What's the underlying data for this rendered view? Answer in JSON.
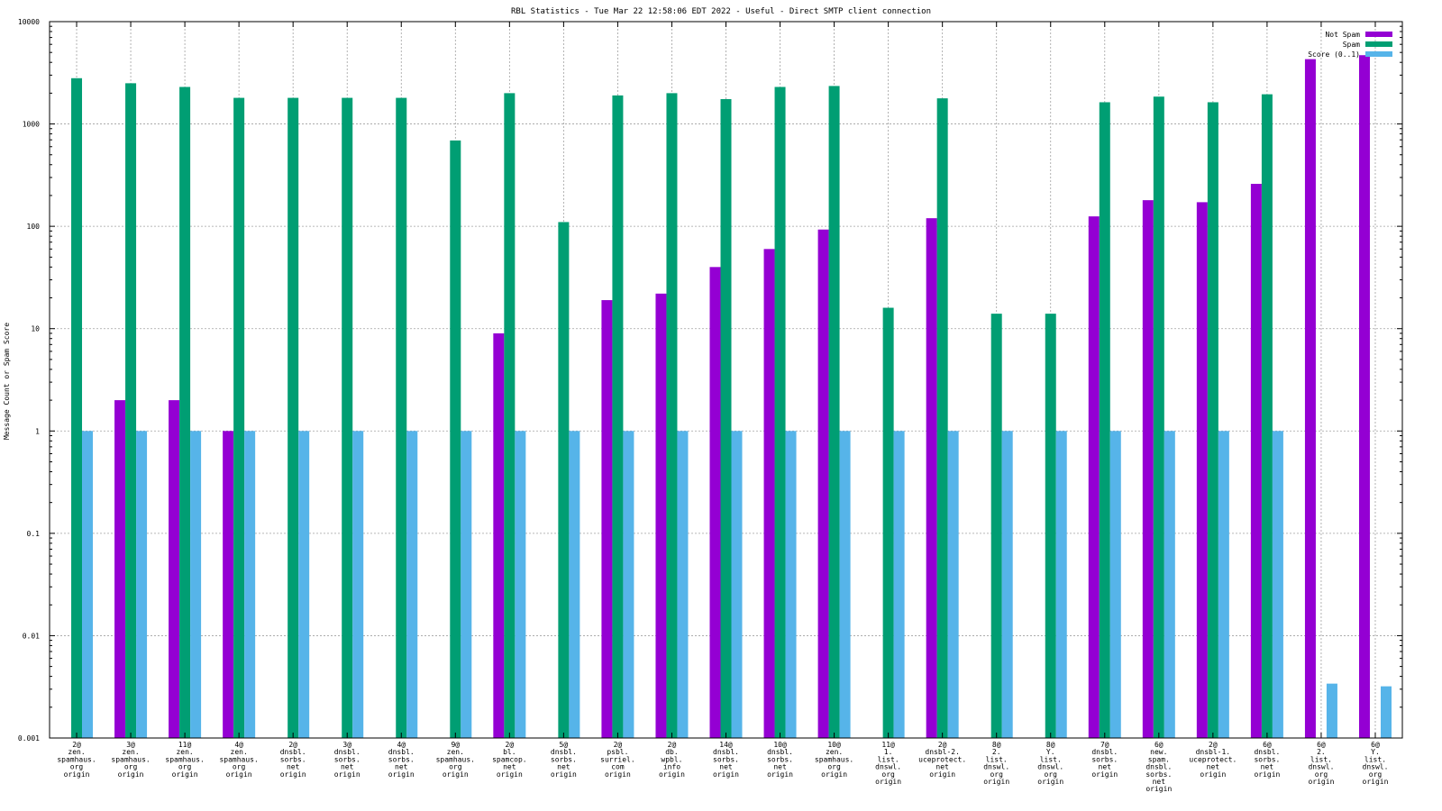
{
  "chart_data": {
    "type": "bar",
    "title": "RBL Statistics - Tue Mar 22 12:58:06 EDT 2022 - Useful - Direct SMTP client connection",
    "xlabel": "",
    "ylabel": "Message Count or Spam Score",
    "yscale": "log",
    "ylim": [
      0.001,
      10000
    ],
    "yticks": [
      "0.001",
      "0.01",
      "0.1",
      "1",
      "10",
      "100",
      "1000",
      "10000"
    ],
    "grid": true,
    "legend_position": "top-right",
    "categories": [
      [
        "2@",
        "zen.",
        "spamhaus.",
        "org",
        "origin"
      ],
      [
        "3@",
        "zen.",
        "spamhaus.",
        "org",
        "origin"
      ],
      [
        "11@",
        "zen.",
        "spamhaus.",
        "org",
        "origin"
      ],
      [
        "4@",
        "zen.",
        "spamhaus.",
        "org",
        "origin"
      ],
      [
        "2@",
        "dnsbl.",
        "sorbs.",
        "net",
        "origin"
      ],
      [
        "3@",
        "dnsbl.",
        "sorbs.",
        "net",
        "origin"
      ],
      [
        "4@",
        "dnsbl.",
        "sorbs.",
        "net",
        "origin"
      ],
      [
        "9@",
        "zen.",
        "spamhaus.",
        "org",
        "origin"
      ],
      [
        "2@",
        "bl.",
        "spamcop.",
        "net",
        "origin"
      ],
      [
        "5@",
        "dnsbl.",
        "sorbs.",
        "net",
        "origin"
      ],
      [
        "2@",
        "psbl.",
        "surriel.",
        "com",
        "origin"
      ],
      [
        "2@",
        "db.",
        "wpbl.",
        "info",
        "origin"
      ],
      [
        "14@",
        "dnsbl.",
        "sorbs.",
        "net",
        "origin"
      ],
      [
        "10@",
        "dnsbl.",
        "sorbs.",
        "net",
        "origin"
      ],
      [
        "10@",
        "zen.",
        "spamhaus.",
        "org",
        "origin"
      ],
      [
        "11@",
        "1.",
        "list.",
        "dnswl.",
        "org",
        "origin"
      ],
      [
        "2@",
        "dnsbl-2.",
        "uceprotect.",
        "net",
        "origin"
      ],
      [
        "8@",
        "2.",
        "list.",
        "dnswl.",
        "org",
        "origin"
      ],
      [
        "8@",
        "Y.",
        "list.",
        "dnswl.",
        "org",
        "origin"
      ],
      [
        "7@",
        "dnsbl.",
        "sorbs.",
        "net",
        "origin"
      ],
      [
        "6@",
        "new.",
        "spam.",
        "dnsbl.",
        "sorbs.",
        "net",
        "origin"
      ],
      [
        "2@",
        "dnsbl-1.",
        "uceprotect.",
        "net",
        "origin"
      ],
      [
        "6@",
        "dnsbl.",
        "sorbs.",
        "net",
        "origin"
      ],
      [
        "6@",
        "2.",
        "list.",
        "dnswl.",
        "org",
        "origin"
      ],
      [
        "6@",
        "Y.",
        "list.",
        "dnswl.",
        "org",
        "origin"
      ]
    ],
    "series": [
      {
        "name": "Not Spam",
        "color": "#9400d3",
        "values": [
          0,
          2,
          2,
          1,
          0,
          0,
          0,
          0,
          9,
          0,
          19,
          22,
          40,
          60,
          93,
          0,
          120,
          0,
          0,
          125,
          180,
          172,
          260,
          4300,
          4700
        ]
      },
      {
        "name": "Spam",
        "color": "#009e73",
        "values": [
          2800,
          2500,
          2300,
          1800,
          1800,
          1800,
          1800,
          690,
          2000,
          110,
          1900,
          2000,
          1750,
          2300,
          2350,
          16,
          1780,
          14,
          14,
          1630,
          1850,
          1630,
          1950,
          0,
          0
        ]
      },
      {
        "name": "Score (0..1)",
        "color": "#56b4e9",
        "values": [
          1,
          1,
          1,
          1,
          1,
          1,
          1,
          1,
          1,
          1,
          1,
          1,
          1,
          1,
          1,
          1,
          1,
          1,
          1,
          1,
          1,
          1,
          1,
          0.0034,
          0.0032
        ]
      }
    ]
  }
}
